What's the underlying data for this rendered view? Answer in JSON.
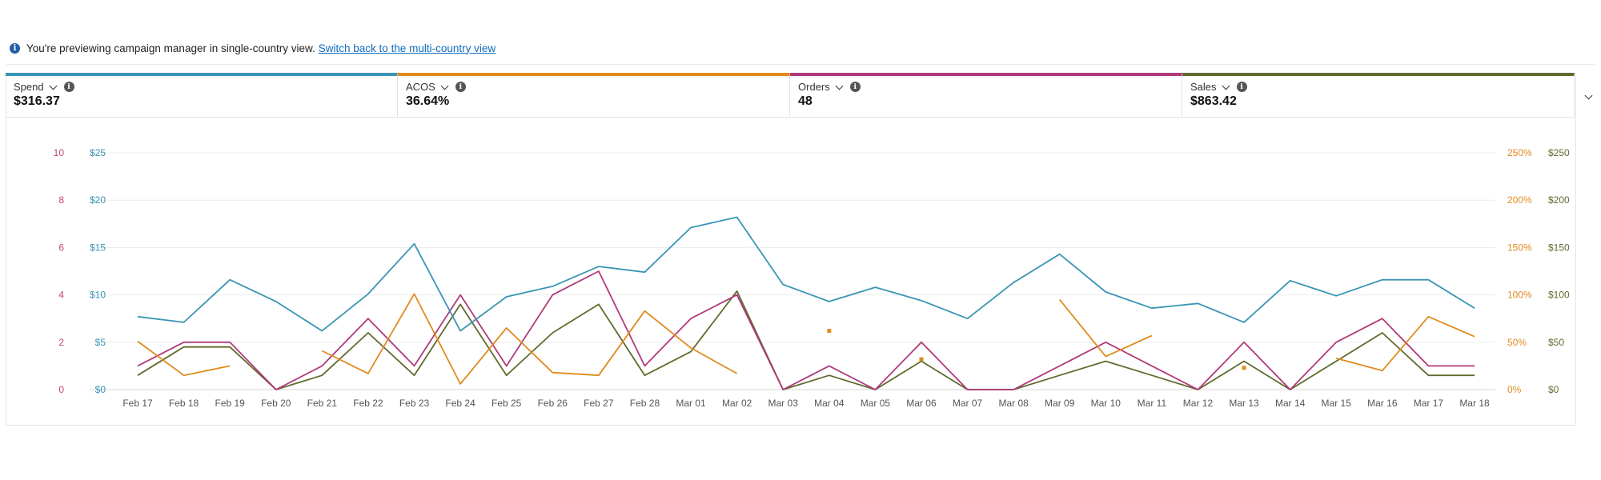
{
  "notice": {
    "icon": "info-icon",
    "text": "You're previewing campaign manager in single-country view.",
    "link": "Switch back to the multi-country view"
  },
  "metrics": [
    {
      "label": "Spend",
      "value": "$316.37",
      "color": "#3a95b5"
    },
    {
      "label": "ACOS",
      "value": "36.64%",
      "color": "#e08a1e"
    },
    {
      "label": "Orders",
      "value": "48",
      "color": "#b0397b"
    },
    {
      "label": "Sales",
      "value": "$863.42",
      "color": "#5f6b2d"
    }
  ],
  "chart_data": {
    "type": "line",
    "x": [
      "Feb 17",
      "Feb 18",
      "Feb 19",
      "Feb 20",
      "Feb 21",
      "Feb 22",
      "Feb 23",
      "Feb 24",
      "Feb 25",
      "Feb 26",
      "Feb 27",
      "Feb 28",
      "Mar 01",
      "Mar 02",
      "Mar 03",
      "Mar 04",
      "Mar 05",
      "Mar 06",
      "Mar 07",
      "Mar 08",
      "Mar 09",
      "Mar 10",
      "Mar 11",
      "Mar 12",
      "Mar 13",
      "Mar 14",
      "Mar 15",
      "Mar 16",
      "Mar 17",
      "Mar 18"
    ],
    "axes": {
      "orders": {
        "ticks": [
          "0",
          "2",
          "4",
          "6",
          "8",
          "10"
        ],
        "max": 10,
        "color": "#c0496b"
      },
      "spend": {
        "ticks": [
          "$0",
          "$5",
          "$10",
          "$15",
          "$20",
          "$25"
        ],
        "max": 25,
        "color": "#3a95b5"
      },
      "acos": {
        "ticks": [
          "0%",
          "50%",
          "100%",
          "150%",
          "200%",
          "250%"
        ],
        "max": 250,
        "color": "#e08a1e"
      },
      "sales": {
        "ticks": [
          "$0",
          "$50",
          "$100",
          "$150",
          "$200",
          "$250"
        ],
        "max": 250,
        "color": "#5f6b2d"
      }
    },
    "grid": true,
    "series": [
      {
        "name": "Spend",
        "axis": "spend",
        "color": "#3a95b5",
        "values": [
          7.7,
          7.1,
          11.6,
          9.3,
          6.2,
          10.1,
          15.4,
          6.2,
          9.8,
          10.9,
          13.0,
          12.4,
          17.1,
          18.2,
          11.1,
          9.3,
          10.8,
          9.4,
          7.5,
          11.3,
          14.3,
          10.3,
          8.6,
          9.1,
          7.1,
          11.5,
          9.9,
          11.6,
          11.6,
          8.6
        ]
      },
      {
        "name": "ACOS",
        "axis": "acos",
        "color": "#e08a1e",
        "values": [
          51,
          15,
          25,
          null,
          41,
          17,
          101,
          6,
          65,
          18,
          15,
          83,
          44,
          17,
          null,
          62,
          null,
          32,
          null,
          null,
          95,
          35,
          57,
          null,
          23,
          null,
          33,
          20,
          77,
          56
        ]
      },
      {
        "name": "Orders",
        "axis": "orders",
        "color": "#b0397b",
        "values": [
          1,
          2,
          2,
          0,
          1,
          3,
          1,
          4,
          1,
          4,
          5,
          1,
          3,
          4,
          0,
          1,
          0,
          2,
          0,
          0,
          1,
          2,
          1,
          0,
          2,
          0,
          2,
          3,
          1,
          1
        ]
      },
      {
        "name": "Sales",
        "axis": "sales",
        "color": "#5f6b2d",
        "values": [
          15,
          45,
          45,
          0,
          15,
          60,
          15,
          90,
          15,
          60,
          90,
          15,
          40,
          104,
          0,
          15,
          0,
          30,
          0,
          0,
          15,
          30,
          15,
          0,
          30,
          0,
          30,
          60,
          15,
          15
        ]
      }
    ]
  }
}
